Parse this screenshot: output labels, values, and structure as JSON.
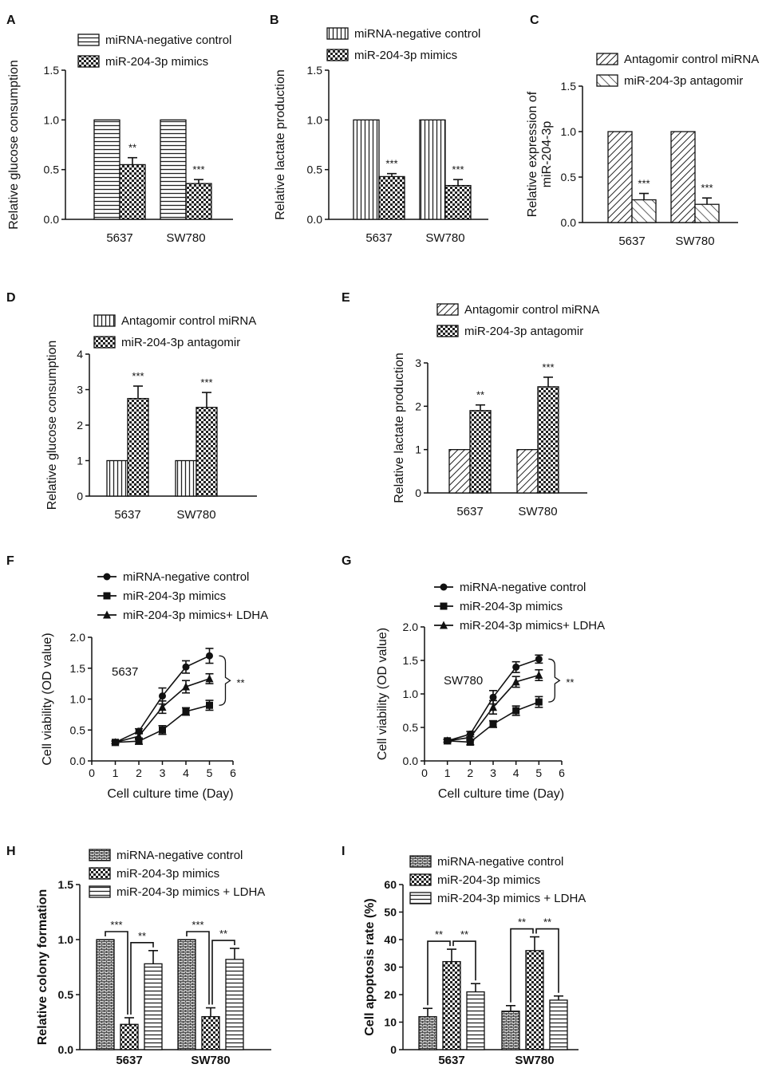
{
  "chart_data": [
    {
      "panel": "A",
      "type": "bar",
      "ylabel": "Relative glucose consumption",
      "ylim": [
        0,
        1.5
      ],
      "yticks": [
        "0.0",
        "0.5",
        "1.0",
        "1.5"
      ],
      "categories": [
        "5637",
        "SW780"
      ],
      "series": [
        {
          "name": "miRNA-negative control",
          "pattern": "hlines",
          "values": [
            1.0,
            1.0
          ],
          "errors": [
            0,
            0
          ]
        },
        {
          "name": "miR-204-3p mimics",
          "pattern": "check",
          "values": [
            0.55,
            0.36
          ],
          "errors": [
            0.07,
            0.04
          ]
        }
      ],
      "stars": [
        [
          "",
          "**"
        ],
        [
          "",
          "***"
        ]
      ]
    },
    {
      "panel": "B",
      "type": "bar",
      "ylabel": "Relative lactate production",
      "ylim": [
        0,
        1.5
      ],
      "yticks": [
        "0.0",
        "0.5",
        "1.0",
        "1.5"
      ],
      "categories": [
        "5637",
        "SW780"
      ],
      "series": [
        {
          "name": "miRNA-negative control",
          "pattern": "vlines",
          "values": [
            1.0,
            1.0
          ],
          "errors": [
            0,
            0
          ]
        },
        {
          "name": "miR-204-3p mimics",
          "pattern": "check",
          "values": [
            0.43,
            0.34
          ],
          "errors": [
            0.03,
            0.06
          ]
        }
      ],
      "stars": [
        [
          "",
          "***"
        ],
        [
          "",
          "***"
        ]
      ]
    },
    {
      "panel": "C",
      "type": "bar",
      "ylabel": "Relative expression of miR-204-3p",
      "ylabel_lines": [
        "Relative expression of",
        "miR-204-3p"
      ],
      "ylim": [
        0,
        1.5
      ],
      "yticks": [
        "0.0",
        "0.5",
        "1.0",
        "1.5"
      ],
      "categories": [
        "5637",
        "SW780"
      ],
      "series": [
        {
          "name": "Antagomir  control miRNA",
          "pattern": "diag",
          "values": [
            1.0,
            1.0
          ],
          "errors": [
            0,
            0
          ]
        },
        {
          "name": "miR-204-3p antagomir",
          "pattern": "diag2",
          "values": [
            0.25,
            0.2
          ],
          "errors": [
            0.07,
            0.07
          ]
        }
      ],
      "stars": [
        [
          "",
          "***"
        ],
        [
          "",
          "***"
        ]
      ]
    },
    {
      "panel": "D",
      "type": "bar",
      "ylabel": "Relative glucose consumption",
      "ylim": [
        0,
        4
      ],
      "yticks": [
        "0",
        "1",
        "2",
        "3",
        "4"
      ],
      "categories": [
        "5637",
        "SW780"
      ],
      "series": [
        {
          "name": "Antagomir  control miRNA",
          "pattern": "vlines",
          "values": [
            1.0,
            1.0
          ],
          "errors": [
            0,
            0
          ]
        },
        {
          "name": "miR-204-3p antagomir",
          "pattern": "check",
          "values": [
            2.75,
            2.5
          ],
          "errors": [
            0.35,
            0.42
          ]
        }
      ],
      "stars": [
        [
          "",
          "***"
        ],
        [
          "",
          "***"
        ]
      ]
    },
    {
      "panel": "E",
      "type": "bar",
      "ylabel": "Relative lactate production",
      "ylim": [
        0,
        3
      ],
      "yticks": [
        "0",
        "1",
        "2",
        "3"
      ],
      "categories": [
        "5637",
        "SW780"
      ],
      "series": [
        {
          "name": "Antagomir  control miRNA",
          "pattern": "diag",
          "values": [
            1.0,
            1.0
          ],
          "errors": [
            0,
            0
          ]
        },
        {
          "name": "miR-204-3p antagomir",
          "pattern": "check",
          "values": [
            1.9,
            2.45
          ],
          "errors": [
            0.13,
            0.22
          ]
        }
      ],
      "stars": [
        [
          "",
          "**"
        ],
        [
          "",
          "***"
        ]
      ]
    },
    {
      "panel": "F",
      "type": "line",
      "ylabel": "Cell viability (OD value)",
      "xlabel": "Cell culture time (Day)",
      "xlim": [
        0,
        6
      ],
      "ylim": [
        0,
        2.0
      ],
      "xticks": [
        "0",
        "1",
        "2",
        "3",
        "4",
        "5",
        "6"
      ],
      "yticks": [
        "0.0",
        "0.5",
        "1.0",
        "1.5",
        "2.0"
      ],
      "inset_label": "5637",
      "bracket_label": "**",
      "series": [
        {
          "name": "miRNA-negative control",
          "marker": "circle",
          "x": [
            1,
            2,
            3,
            4,
            5
          ],
          "values": [
            0.3,
            0.48,
            1.05,
            1.52,
            1.7
          ],
          "errors": [
            0.02,
            0.04,
            0.13,
            0.1,
            0.12
          ]
        },
        {
          "name": "miR-204-3p mimics",
          "marker": "square",
          "x": [
            1,
            2,
            3,
            4,
            5
          ],
          "values": [
            0.3,
            0.32,
            0.5,
            0.8,
            0.9
          ],
          "errors": [
            0.02,
            0.05,
            0.07,
            0.06,
            0.08
          ]
        },
        {
          "name": "miR-204-3p mimics+ LDHA",
          "marker": "triangle",
          "x": [
            1,
            2,
            3,
            4,
            5
          ],
          "values": [
            0.3,
            0.4,
            0.87,
            1.2,
            1.33
          ],
          "errors": [
            0.02,
            0.05,
            0.1,
            0.1,
            0.08
          ]
        }
      ]
    },
    {
      "panel": "G",
      "type": "line",
      "ylabel": "Cell viability (OD value)",
      "xlabel": "Cell culture time (Day)",
      "xlim": [
        0,
        6
      ],
      "ylim": [
        0,
        2.0
      ],
      "xticks": [
        "0",
        "1",
        "2",
        "3",
        "4",
        "5",
        "6"
      ],
      "yticks": [
        "0.0",
        "0.5",
        "1.0",
        "1.5",
        "2.0"
      ],
      "inset_label": "SW780",
      "bracket_label": "**",
      "series": [
        {
          "name": "miRNA-negative control",
          "marker": "circle",
          "x": [
            1,
            2,
            3,
            4,
            5
          ],
          "values": [
            0.3,
            0.4,
            0.95,
            1.4,
            1.52
          ],
          "errors": [
            0.02,
            0.04,
            0.1,
            0.08,
            0.06
          ]
        },
        {
          "name": "miR-204-3p mimics",
          "marker": "square",
          "x": [
            1,
            2,
            3,
            4,
            5
          ],
          "values": [
            0.3,
            0.28,
            0.55,
            0.75,
            0.88
          ],
          "errors": [
            0.02,
            0.04,
            0.05,
            0.07,
            0.08
          ]
        },
        {
          "name": "miR-204-3p mimics+ LDHA",
          "marker": "triangle",
          "x": [
            1,
            2,
            3,
            4,
            5
          ],
          "values": [
            0.3,
            0.35,
            0.8,
            1.18,
            1.28
          ],
          "errors": [
            0.02,
            0.04,
            0.1,
            0.08,
            0.08
          ]
        }
      ]
    },
    {
      "panel": "H",
      "type": "bar",
      "ylabel": "Relative colony formation",
      "ylim": [
        0,
        1.5
      ],
      "yticks": [
        "0.0",
        "0.5",
        "1.0",
        "1.5"
      ],
      "categories": [
        "5637",
        "SW780"
      ],
      "series": [
        {
          "name": "miRNA-negative control",
          "pattern": "brick",
          "values": [
            1.0,
            1.0
          ],
          "errors": [
            0,
            0
          ]
        },
        {
          "name": "miR-204-3p mimics",
          "pattern": "check",
          "values": [
            0.23,
            0.3
          ],
          "errors": [
            0.06,
            0.08
          ]
        },
        {
          "name": "miR-204-3p mimics + LDHA",
          "pattern": "hlines",
          "values": [
            0.78,
            0.82
          ],
          "errors": [
            0.12,
            0.1
          ]
        }
      ],
      "brackets": [
        [
          "***",
          "**"
        ],
        [
          "***",
          "**"
        ]
      ]
    },
    {
      "panel": "I",
      "type": "bar",
      "ylabel": "Cell apoptosis rate (%)",
      "ylim": [
        0,
        60
      ],
      "yticks": [
        "0",
        "10",
        "20",
        "30",
        "40",
        "50",
        "60"
      ],
      "categories": [
        "5637",
        "SW780"
      ],
      "series": [
        {
          "name": "miRNA-negative control",
          "pattern": "brick",
          "values": [
            12,
            14
          ],
          "errors": [
            3,
            2
          ]
        },
        {
          "name": "miR-204-3p mimics",
          "pattern": "check",
          "values": [
            32,
            36
          ],
          "errors": [
            4.5,
            5
          ]
        },
        {
          "name": "miR-204-3p mimics + LDHA",
          "pattern": "hlines",
          "values": [
            21,
            18
          ],
          "errors": [
            3,
            1.5
          ]
        }
      ],
      "brackets": [
        [
          "**",
          "**"
        ],
        [
          "**",
          "**"
        ]
      ]
    }
  ]
}
